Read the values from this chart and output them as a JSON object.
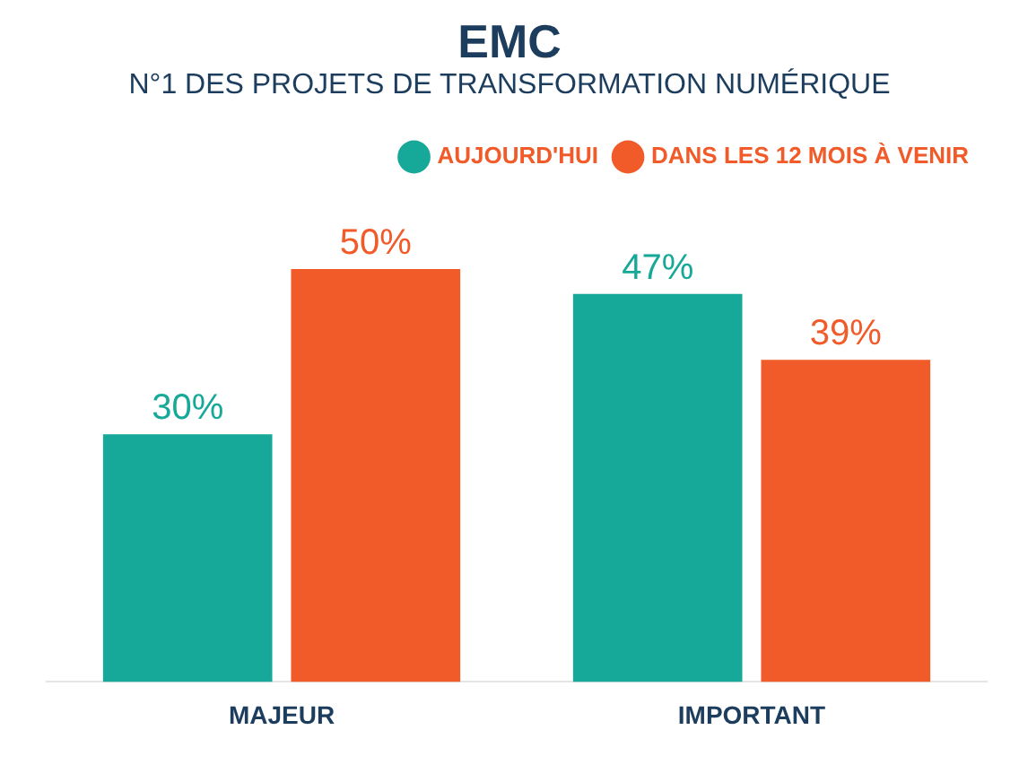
{
  "chart_data": {
    "type": "bar",
    "title": "EMC",
    "subtitle": "N°1 DES PROJETS DE TRANSFORMATION NUMÉRIQUE",
    "categories": [
      "MAJEUR",
      "IMPORTANT"
    ],
    "series": [
      {
        "name": "AUJOURD'HUI",
        "color": "#16a898",
        "values": [
          30,
          47
        ],
        "value_labels": [
          "30%",
          "47%"
        ]
      },
      {
        "name": "DANS LES 12 MOIS À VENIR",
        "color": "#f15a29",
        "values": [
          50,
          39
        ],
        "value_labels": [
          "50%",
          "39%"
        ]
      }
    ],
    "relative": false,
    "legend": "top right"
  }
}
